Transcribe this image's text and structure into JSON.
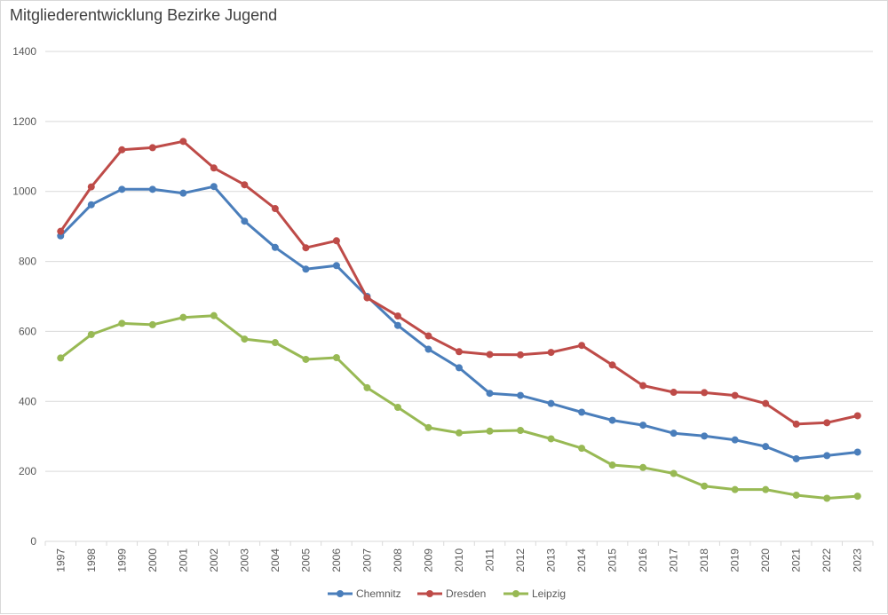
{
  "chart_data": {
    "type": "line",
    "title": "Mitgliederentwicklung Bezirke Jugend",
    "xlabel": "",
    "ylabel": "",
    "ylim": [
      0,
      1400
    ],
    "yticks": [
      "0",
      "200",
      "400",
      "600",
      "800",
      "1000",
      "1200",
      "1400"
    ],
    "grid": true,
    "legend_position": "bottom",
    "categories": [
      "1997",
      "1998",
      "1999",
      "2000",
      "2001",
      "2002",
      "2003",
      "2004",
      "2005",
      "2006",
      "2007",
      "2008",
      "2009",
      "2010",
      "2011",
      "2012",
      "2013",
      "2014",
      "2015",
      "2016",
      "2017",
      "2018",
      "2019",
      "2020",
      "2021",
      "2022",
      "2023"
    ],
    "series": [
      {
        "name": "Chemnitz",
        "color": "#4a7ebb",
        "values": [
          873,
          962,
          1006,
          1006,
          995,
          1014,
          915,
          840,
          778,
          788,
          700,
          617,
          549,
          496,
          423,
          417,
          394,
          369,
          346,
          332,
          309,
          301,
          290,
          271,
          236,
          245,
          255
        ]
      },
      {
        "name": "Dresden",
        "color": "#be4b48",
        "values": [
          886,
          1013,
          1119,
          1125,
          1143,
          1067,
          1019,
          951,
          839,
          859,
          696,
          644,
          587,
          542,
          534,
          533,
          540,
          560,
          504,
          445,
          426,
          425,
          417,
          394,
          335,
          339,
          359
        ]
      },
      {
        "name": "Leipzig",
        "color": "#98b954",
        "values": [
          524,
          591,
          623,
          619,
          640,
          645,
          578,
          568,
          520,
          525,
          439,
          383,
          325,
          310,
          315,
          317,
          293,
          266,
          218,
          211,
          194,
          158,
          148,
          148,
          132,
          123,
          129
        ]
      }
    ]
  }
}
